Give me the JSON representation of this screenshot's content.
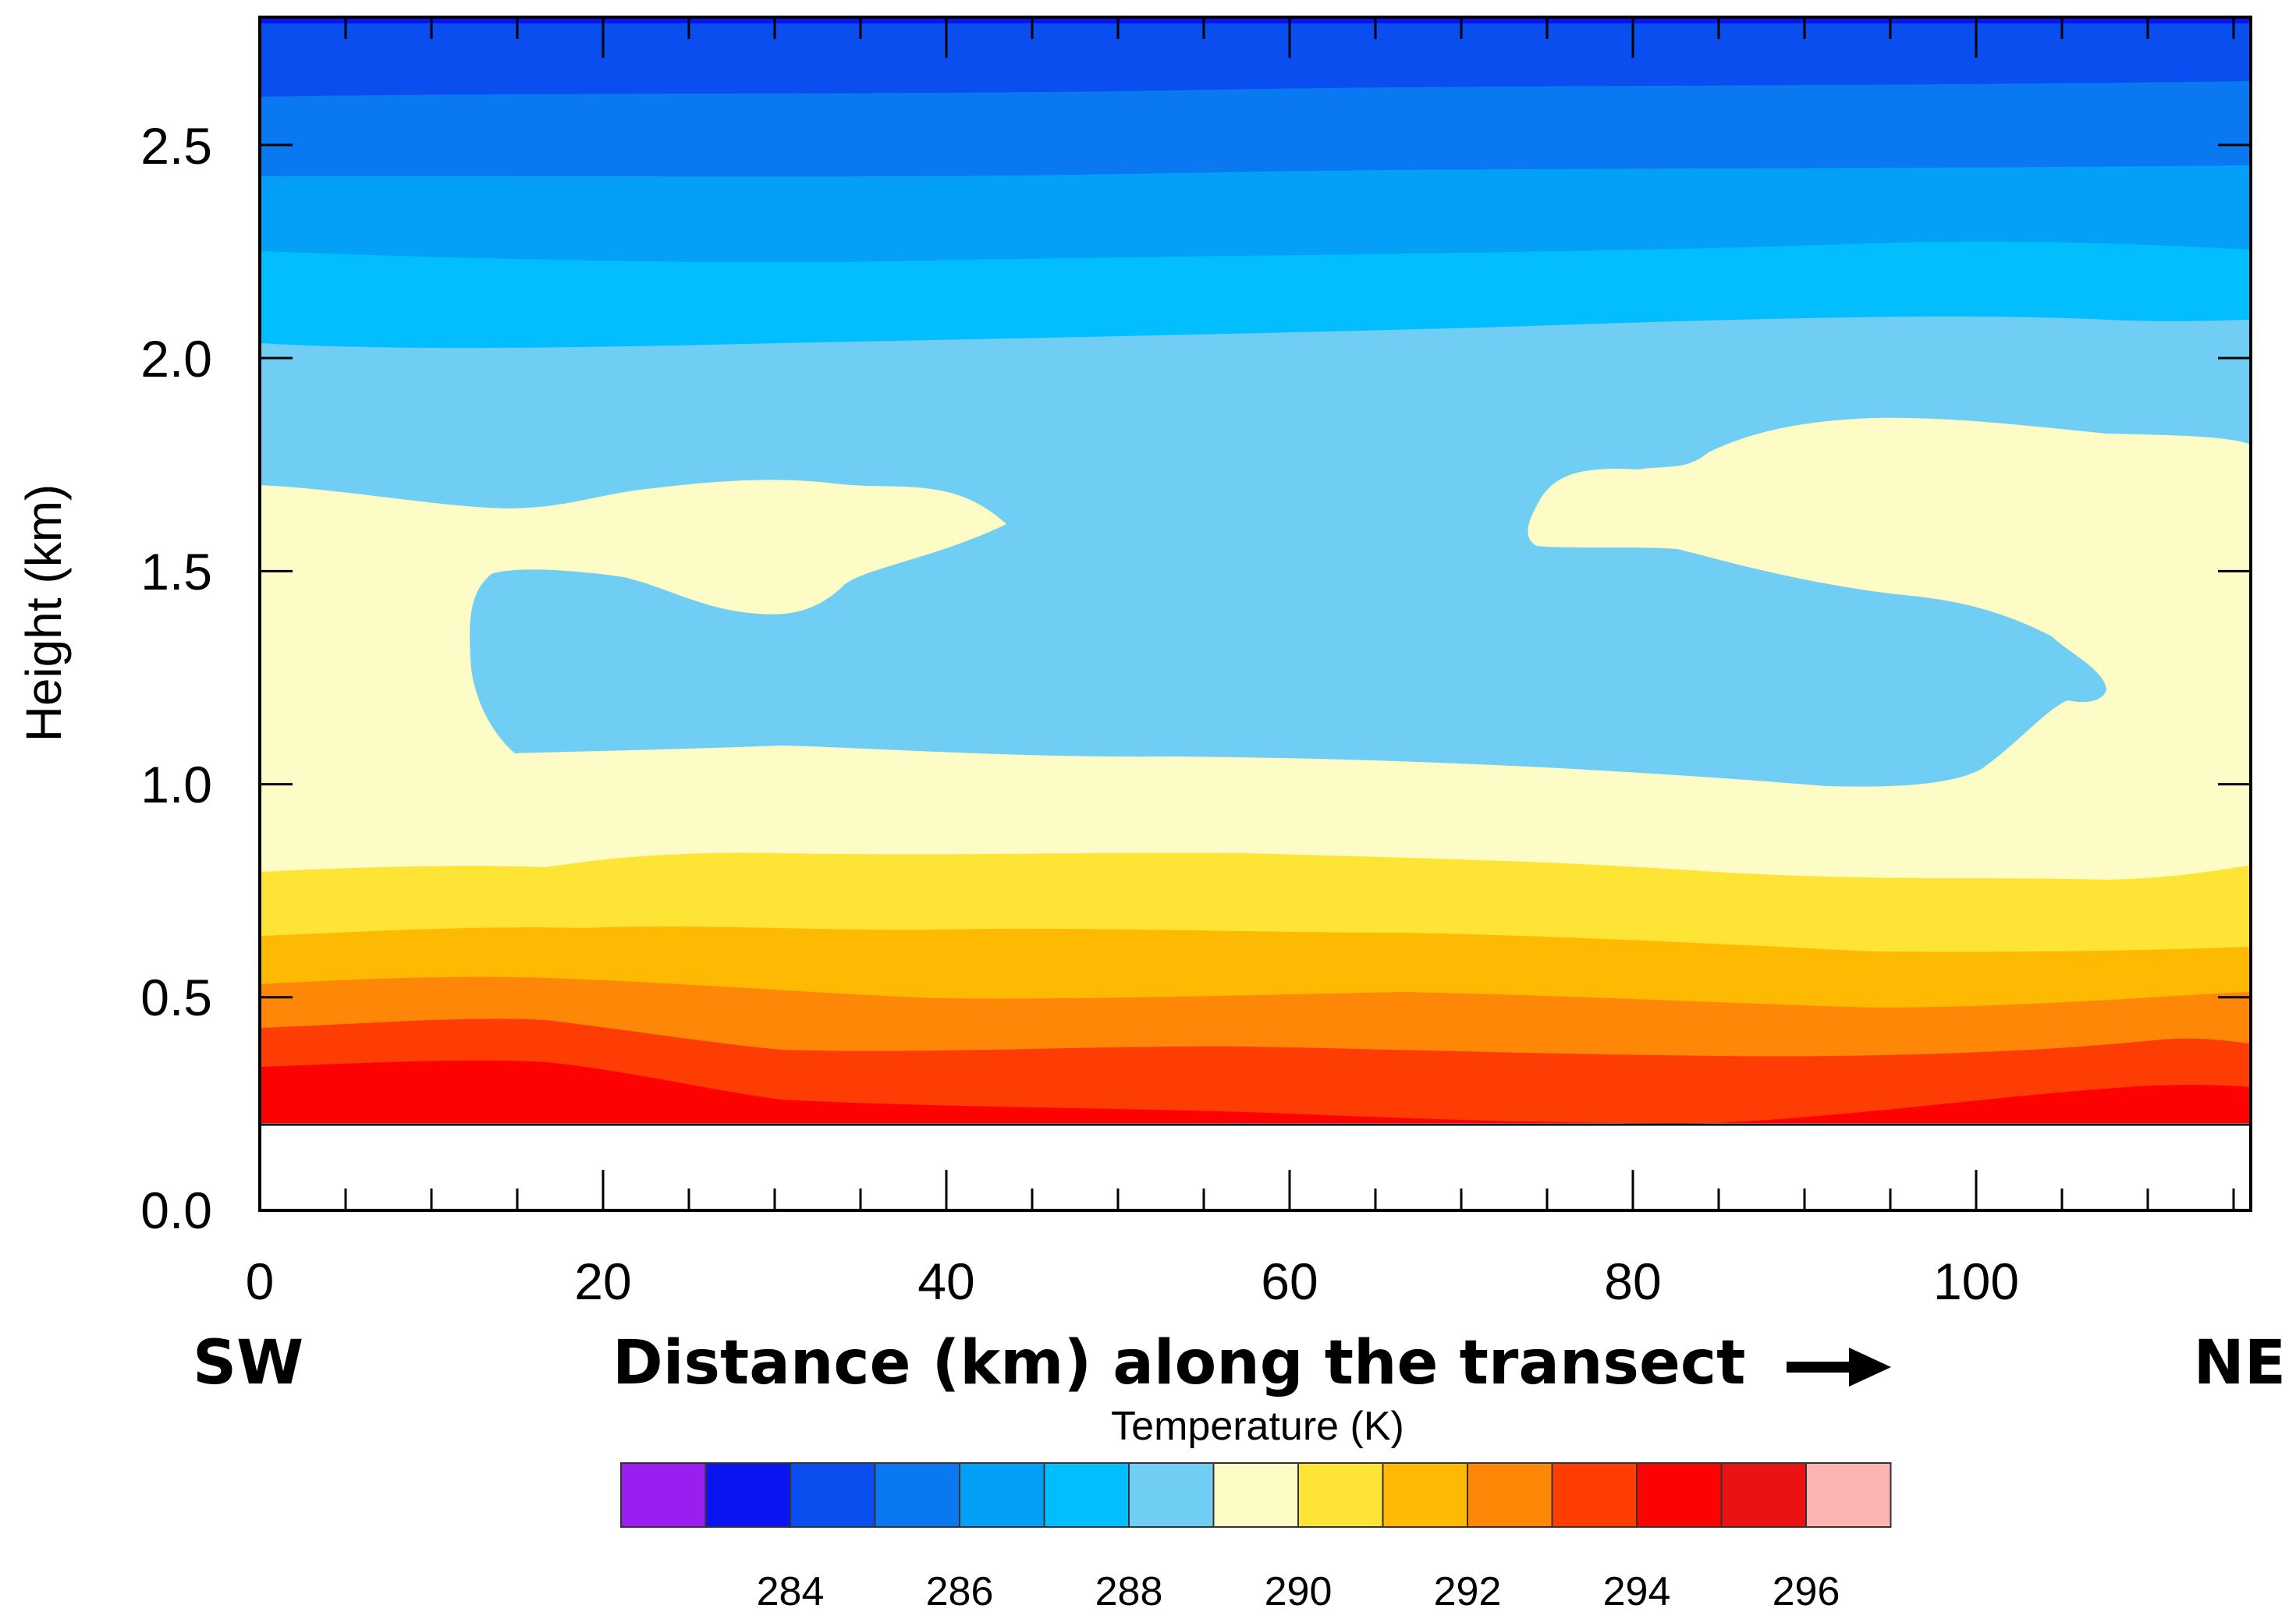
{
  "chart_data": {
    "type": "heatmap",
    "subtype": "filled-contour cross-section",
    "title": "",
    "xlabel": "Distance (km) along the transect",
    "ylabel": "Height (km)",
    "left_label": "SW",
    "right_label": "NE",
    "direction_arrow": "right",
    "xlim": [
      0,
      116
    ],
    "ylim": [
      0,
      2.8
    ],
    "x_ticks": [
      "0",
      "20",
      "40",
      "60",
      "80",
      "100"
    ],
    "y_ticks": [
      "0.0",
      "0.5",
      "1.0",
      "1.5",
      "2.0",
      "2.5"
    ],
    "colorbar": {
      "title": "Temperature  (K)",
      "labels": [
        "284",
        "286",
        "288",
        "290",
        "292",
        "294",
        "296"
      ],
      "colors": [
        "#9a1ef0",
        "#0a14f0",
        "#0a4ef0",
        "#0a78f0",
        "#04a0f8",
        "#02beff",
        "#70cef4",
        "#fdfbc6",
        "#fee535",
        "#feb902",
        "#fe8707",
        "#fe3d05",
        "#fe0101",
        "#ea1213",
        "#ffb4b4"
      ]
    },
    "terrain_top_km": 0.2,
    "layers": [
      {
        "band": "<286",
        "color": "#0a4ef0",
        "y_range_km": [
          2.62,
          2.8
        ]
      },
      {
        "band": "286-286.5",
        "color": "#0a78f0",
        "y_range_km": [
          2.43,
          2.62
        ]
      },
      {
        "band": "286.5-287.5",
        "color": "#04a0f8",
        "y_range_km": [
          2.25,
          2.43
        ]
      },
      {
        "band": "287.5-288.5",
        "color": "#02beff",
        "y_range_km": [
          2.05,
          2.25
        ]
      },
      {
        "band": "288.5-289.5",
        "color": "#70cef4",
        "y_range_km": [
          1.65,
          2.05
        ]
      },
      {
        "band": "289.5-290.5",
        "color": "#fdfbc6",
        "y_range_km": [
          0.8,
          1.65
        ]
      },
      {
        "band": "290.5-291.5",
        "color": "#fee535",
        "y_range_km": [
          0.65,
          0.8
        ]
      },
      {
        "band": "291.5-292.5",
        "color": "#feb902",
        "y_range_km": [
          0.52,
          0.65
        ]
      },
      {
        "band": "292.5-293.5",
        "color": "#fe8707",
        "y_range_km": [
          0.42,
          0.52
        ]
      },
      {
        "band": "293.5-294.5",
        "color": "#fe3d05",
        "y_range_km": [
          0.32,
          0.42
        ]
      },
      {
        "band": "294.5-295.5",
        "color": "#fe0101",
        "y_range_km": [
          0.2,
          0.32
        ]
      }
    ],
    "features": [
      {
        "kind": "cool pocket 288.5-289.5 K",
        "x_range_km": [
          12,
          108
        ],
        "y_range_km": [
          1.0,
          1.6
        ]
      },
      {
        "kind": "warm tongue 289.5-290.5 K",
        "x_range_km": [
          74,
          116
        ],
        "y_range_km": [
          1.55,
          1.85
        ]
      }
    ],
    "grid": false
  }
}
